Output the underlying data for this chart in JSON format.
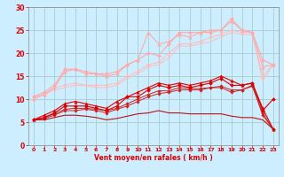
{
  "xlabel": "Vent moyen/en rafales ( km/h )",
  "background_color": "#cceeff",
  "grid_color": "#aacccc",
  "xlim": [
    -0.5,
    23.5
  ],
  "ylim": [
    0,
    30
  ],
  "xticks": [
    0,
    1,
    2,
    3,
    4,
    5,
    6,
    7,
    8,
    9,
    10,
    11,
    12,
    13,
    14,
    15,
    16,
    17,
    18,
    19,
    20,
    21,
    22,
    23
  ],
  "yticks": [
    0,
    5,
    10,
    15,
    20,
    25,
    30
  ],
  "series": [
    {
      "x": [
        0,
        1,
        2,
        3,
        4,
        5,
        6,
        7,
        8,
        9,
        10,
        11,
        12,
        13,
        14,
        15,
        16,
        17,
        18,
        19,
        20,
        21,
        22,
        23
      ],
      "y": [
        5.5,
        6.0,
        7.0,
        8.5,
        8.5,
        8.5,
        8.0,
        7.5,
        8.5,
        10.5,
        10.5,
        12.0,
        13.0,
        12.5,
        13.0,
        12.5,
        13.0,
        13.5,
        14.5,
        13.0,
        13.0,
        13.5,
        7.5,
        10.0
      ],
      "color": "#dd0000",
      "marker": "D",
      "markersize": 2.0,
      "linewidth": 0.8,
      "zorder": 3
    },
    {
      "x": [
        0,
        1,
        2,
        3,
        4,
        5,
        6,
        7,
        8,
        9,
        10,
        11,
        12,
        13,
        14,
        15,
        16,
        17,
        18,
        19,
        20,
        21,
        22,
        23
      ],
      "y": [
        5.5,
        6.5,
        7.5,
        9.0,
        9.5,
        9.0,
        8.5,
        8.0,
        9.5,
        10.5,
        11.5,
        12.5,
        13.5,
        13.0,
        13.5,
        13.0,
        13.5,
        14.0,
        15.0,
        14.0,
        13.0,
        13.5,
        8.0,
        3.5
      ],
      "color": "#dd0000",
      "marker": "^",
      "markersize": 2.5,
      "linewidth": 0.8,
      "zorder": 3
    },
    {
      "x": [
        0,
        1,
        2,
        3,
        4,
        5,
        6,
        7,
        8,
        9,
        10,
        11,
        12,
        13,
        14,
        15,
        16,
        17,
        18,
        19,
        20,
        21,
        22,
        23
      ],
      "y": [
        5.5,
        6.0,
        6.8,
        7.8,
        8.0,
        8.0,
        7.8,
        7.5,
        8.0,
        9.0,
        10.0,
        11.0,
        11.8,
        11.8,
        12.5,
        12.3,
        12.3,
        12.5,
        12.8,
        12.0,
        12.0,
        12.8,
        7.0,
        3.5
      ],
      "color": "#cc2222",
      "marker": "D",
      "markersize": 1.8,
      "linewidth": 0.7,
      "zorder": 2
    },
    {
      "x": [
        0,
        1,
        2,
        3,
        4,
        5,
        6,
        7,
        8,
        9,
        10,
        11,
        12,
        13,
        14,
        15,
        16,
        17,
        18,
        19,
        20,
        21,
        22,
        23
      ],
      "y": [
        5.5,
        5.8,
        6.5,
        7.5,
        7.5,
        7.8,
        7.5,
        7.0,
        7.8,
        8.5,
        9.5,
        10.5,
        11.2,
        11.5,
        12.0,
        12.0,
        12.0,
        12.5,
        12.5,
        11.5,
        12.0,
        13.0,
        6.5,
        3.5
      ],
      "color": "#cc2222",
      "marker": "D",
      "markersize": 1.8,
      "linewidth": 0.7,
      "zorder": 2
    },
    {
      "x": [
        0,
        1,
        2,
        3,
        4,
        5,
        6,
        7,
        8,
        9,
        10,
        11,
        12,
        13,
        14,
        15,
        16,
        17,
        18,
        19,
        20,
        21,
        22,
        23
      ],
      "y": [
        5.5,
        5.5,
        6.0,
        6.5,
        6.5,
        6.3,
        6.0,
        5.5,
        5.8,
        6.3,
        6.8,
        7.0,
        7.5,
        7.0,
        7.0,
        6.8,
        6.8,
        6.8,
        6.8,
        6.3,
        6.0,
        6.0,
        5.5,
        3.5
      ],
      "color": "#bb1111",
      "marker": null,
      "markersize": 0,
      "linewidth": 0.8,
      "zorder": 2
    },
    {
      "x": [
        0,
        1,
        2,
        3,
        4,
        5,
        6,
        7,
        8,
        9,
        10,
        11,
        12,
        13,
        14,
        15,
        16,
        17,
        18,
        19,
        20,
        21,
        22,
        23
      ],
      "y": [
        10.5,
        11.5,
        13.0,
        16.5,
        16.5,
        16.0,
        15.5,
        15.5,
        16.0,
        17.5,
        18.5,
        20.0,
        19.5,
        22.0,
        24.5,
        24.5,
        24.5,
        24.5,
        25.0,
        27.5,
        25.0,
        24.5,
        18.5,
        17.5
      ],
      "color": "#ffaaaa",
      "marker": "D",
      "markersize": 2.0,
      "linewidth": 0.8,
      "zorder": 3
    },
    {
      "x": [
        0,
        1,
        2,
        3,
        4,
        5,
        6,
        7,
        8,
        9,
        10,
        11,
        12,
        13,
        14,
        15,
        16,
        17,
        18,
        19,
        20,
        21,
        22,
        23
      ],
      "y": [
        10.0,
        11.0,
        12.5,
        16.0,
        16.5,
        15.5,
        15.5,
        15.0,
        15.5,
        17.5,
        18.5,
        24.5,
        22.0,
        22.5,
        24.0,
        23.5,
        24.5,
        25.0,
        25.0,
        27.0,
        25.0,
        24.5,
        17.0,
        17.5
      ],
      "color": "#ffaaaa",
      "marker": "^",
      "markersize": 2.5,
      "linewidth": 0.8,
      "zorder": 3
    },
    {
      "x": [
        0,
        1,
        2,
        3,
        4,
        5,
        6,
        7,
        8,
        9,
        10,
        11,
        12,
        13,
        14,
        15,
        16,
        17,
        18,
        19,
        20,
        21,
        22,
        23
      ],
      "y": [
        10.5,
        11.0,
        12.5,
        13.0,
        13.5,
        13.0,
        13.0,
        13.0,
        13.5,
        15.0,
        16.0,
        17.5,
        18.0,
        20.0,
        22.0,
        22.0,
        22.5,
        23.5,
        24.0,
        25.0,
        24.5,
        24.5,
        15.0,
        17.5
      ],
      "color": "#ffbbbb",
      "marker": "D",
      "markersize": 1.8,
      "linewidth": 0.7,
      "zorder": 2
    },
    {
      "x": [
        0,
        1,
        2,
        3,
        4,
        5,
        6,
        7,
        8,
        9,
        10,
        11,
        12,
        13,
        14,
        15,
        16,
        17,
        18,
        19,
        20,
        21,
        22,
        23
      ],
      "y": [
        10.5,
        11.0,
        12.0,
        12.5,
        13.0,
        13.0,
        12.5,
        12.5,
        13.0,
        14.5,
        15.5,
        17.0,
        17.5,
        19.0,
        21.5,
        21.5,
        22.0,
        22.5,
        23.5,
        24.5,
        24.0,
        24.0,
        14.0,
        17.5
      ],
      "color": "#ffbbbb",
      "marker": null,
      "markersize": 0,
      "linewidth": 0.7,
      "zorder": 2
    }
  ]
}
